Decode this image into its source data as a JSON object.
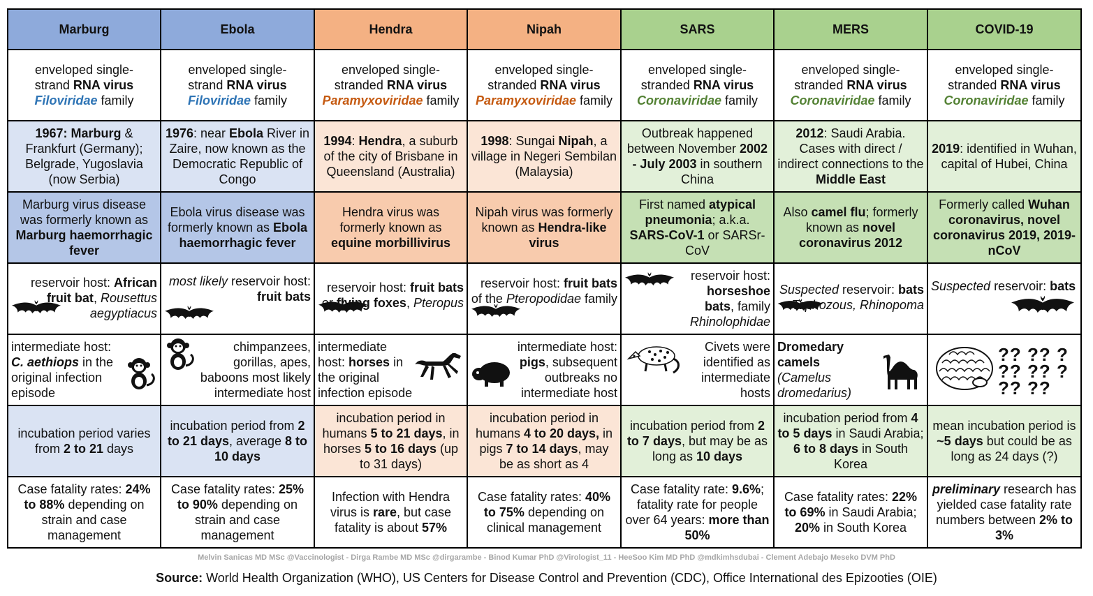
{
  "headers": [
    "Marburg",
    "Ebola",
    "Hendra",
    "Nipah",
    "SARS",
    "MERS",
    "COVID-19"
  ],
  "virus_type": {
    "marburg": {
      "l1": "enveloped single-",
      "l2a": "strand ",
      "l2b": "RNA virus",
      "fam": "Filoviridae",
      "fam_suffix": " family"
    },
    "ebola": {
      "l1": "enveloped single-",
      "l2a": "strand ",
      "l2b": "RNA virus",
      "fam": "Filoviridae",
      "fam_suffix": " family"
    },
    "hendra": {
      "l1": "enveloped single-",
      "l2a": "stranded ",
      "l2b": "RNA virus",
      "fam": "Paramyxoviridae",
      "fam_suffix": " family"
    },
    "nipah": {
      "l1": "enveloped single-",
      "l2a": "stranded ",
      "l2b": "RNA virus",
      "fam": "Paramyxoviridae",
      "fam_suffix": " family"
    },
    "sars": {
      "l1": "enveloped single-",
      "l2a": "stranded ",
      "l2b": "RNA virus",
      "fam": "Coronaviridae",
      "fam_suffix": " family"
    },
    "mers": {
      "l1": "enveloped single-",
      "l2a": "stranded ",
      "l2b": "RNA virus",
      "fam": "Coronaviridae",
      "fam_suffix": " family"
    },
    "covid": {
      "l1": "enveloped single-",
      "l2a": "stranded ",
      "l2b": "RNA virus",
      "fam": "Coronaviridae",
      "fam_suffix": " family"
    }
  },
  "origin": {
    "marburg": {
      "b1": "1967: Marburg",
      "t1": " & Frankfurt (Germany); Belgrade, Yugoslavia (now Serbia)"
    },
    "ebola": {
      "b1": "1976",
      "t1": ": near ",
      "b2": "Ebola",
      "t2": " River in Zaire, now known as the Democratic Republic of Congo"
    },
    "hendra": {
      "b1": "1994",
      "t1": ": ",
      "b2": "Hendra",
      "t2": ", a suburb of the city of Brisbane in Queensland (Australia)"
    },
    "nipah": {
      "b1": "1998",
      "t1": ": Sungai ",
      "b2": "Nipah",
      "t2": ", a village in Negeri Sembilan (Malaysia)"
    },
    "sars": {
      "t1": "Outbreak happened between November ",
      "b1": "2002 - July 2003",
      "t2": " in southern China"
    },
    "mers": {
      "b1": "2012",
      "t1": ": Saudi Arabia. Cases with direct / indirect connections to the ",
      "b2": "Middle East"
    },
    "covid": {
      "b1": "2019",
      "t1": ": identified in Wuhan, capital of Hubei, China"
    }
  },
  "former_names": {
    "marburg": {
      "t1": "Marburg virus disease was formerly known as ",
      "b1": "Marburg haemorrhagic fever"
    },
    "ebola": {
      "t1": "Ebola virus disease was formerly known as ",
      "b1": "Ebola haemorrhagic fever"
    },
    "hendra": {
      "t1": "Hendra virus was formerly known as ",
      "b1": "equine morbillivirus"
    },
    "nipah": {
      "t1": "Nipah virus was formerly known as ",
      "b1": "Hendra-like virus"
    },
    "sars": {
      "t1": "First named ",
      "b1": "atypical pneumonia",
      "t2": "; a.k.a. ",
      "b2": "SARS-CoV-1",
      "t3": " or SARSr-CoV"
    },
    "mers": {
      "t1": "Also ",
      "b1": "camel flu",
      "t2": "; formerly known as ",
      "b2": "novel coronavirus 2012"
    },
    "covid": {
      "t1": "Formerly called ",
      "b1": "Wuhan coronavirus, novel coronavirus 2019, 2019-nCoV"
    }
  },
  "reservoir": {
    "marburg": {
      "t1": "reservoir host: ",
      "b1": "African fruit bat",
      "t2": ", ",
      "i1": "Rousettus aegyptiacus"
    },
    "ebola": {
      "i1": "most likely",
      "t1": " reservoir host: ",
      "b1": "fruit bats"
    },
    "hendra": {
      "t1": "reservoir host: ",
      "b1": "fruit bats",
      "t2": " or ",
      "b2": "flying foxes",
      "t3": ", ",
      "i1": "Pteropus"
    },
    "nipah": {
      "t1": "reservoir host: ",
      "b1": "fruit bats",
      "t2": " of the ",
      "i1": "Pteropodidae",
      "t3": " family"
    },
    "sars": {
      "t1": "reservoir host: ",
      "b1": "horseshoe bats",
      "t2": ", family ",
      "i1": "Rhinolophidae"
    },
    "mers": {
      "i1": "Suspected",
      "t1": " reservoir: ",
      "b1": "bats",
      "i2": " Taphozous, Rhinopoma"
    },
    "covid": {
      "i1": "Suspected",
      "t1": " reservoir: ",
      "b1": "bats"
    }
  },
  "intermediate": {
    "marburg": {
      "t1": "intermediate host: ",
      "bi1": "C. aethiops",
      "t2": " in the original infection episode"
    },
    "ebola": {
      "t1": "chimpanzees, gorillas, apes, baboons most likely intermediate host"
    },
    "hendra": {
      "t1": "intermediate host: ",
      "b1": "horses",
      "t2": " in the original infection episode"
    },
    "nipah": {
      "t1": "intermediate host: ",
      "b1": "pigs",
      "t2": ", subsequent outbreaks no intermediate host"
    },
    "sars": {
      "t1": "Civets were identified as intermediate hosts"
    },
    "mers": {
      "b1": "Dromedary camels",
      "i1": "(Camelus dromedarius)"
    },
    "covid": {
      "qm": "?? ?? ?\n?? ?? ?\n?? ??"
    }
  },
  "incubation": {
    "marburg": {
      "t1": "incubation period varies from ",
      "b1": "2 to 21",
      "t2": " days"
    },
    "ebola": {
      "t1": "incubation period from ",
      "b1": "2 to 21 days",
      "t2": ", average ",
      "b2": "8 to 10 days"
    },
    "hendra": {
      "t1": "incubation period in humans ",
      "b1": "5 to 21 days",
      "t2": ", in horses ",
      "b2": "5 to 16 days",
      "t3": " (up to 31 days)"
    },
    "nipah": {
      "t1": "incubation period in humans ",
      "b1": "4 to 20 days,",
      "t2": " in pigs ",
      "b2": "7 to 14 days",
      "t3": ", may be as short as 4"
    },
    "sars": {
      "t1": "incubation period from ",
      "b1": "2 to 7 days",
      "t2": ", but may be as long as ",
      "b2": "10 days"
    },
    "mers": {
      "t1": "incubation period from ",
      "b1": "4 to 5 days",
      "t2": " in Saudi Arabia; ",
      "b2": "6 to 8 days",
      "t3": " in South Korea"
    },
    "covid": {
      "t1": "mean incubation period is ",
      "b1": "~5 days",
      "t2": " but could be as long as 24 days (?)"
    }
  },
  "fatality": {
    "marburg": {
      "t1": "Case fatality rates: ",
      "b1": "24% to 88%",
      "t2": " depending on strain and case management"
    },
    "ebola": {
      "t1": "Case fatality rates: ",
      "b1": "25% to 90%",
      "t2": " depending on strain and case management"
    },
    "hendra": {
      "t1": "Infection with Hendra virus is ",
      "b1": "rare",
      "t2": ", but case fatality is about ",
      "b2": "57%"
    },
    "nipah": {
      "t1": "Case fatality rates: ",
      "b1": "40% to 75%",
      "t2": " depending on clinical management"
    },
    "sars": {
      "t1": "Case fatality rate: ",
      "b1": "9.6%",
      "t2": "; fatality rate for people over 64 years: ",
      "b2": "more than 50%"
    },
    "mers": {
      "t1": "Case fatality rates: ",
      "b1": "22% to 69%",
      "t2": " in Saudi Arabia; ",
      "b2": "20%",
      "t3": " in South Korea"
    },
    "covid": {
      "bi1": "preliminary",
      "t1": " research has yielded case fatality rate numbers between ",
      "b1": "2% to 3%"
    }
  },
  "credits": "Melvin Sanicas MD MSc @Vaccinologist - Dirga Rambe MD MSc @dirgarambe - Binod Kumar PhD @Virologist_11 - HeeSoo Kim MD PhD @mdkimhsdubai - Clement Adebajo Meseko DVM PhD",
  "source": {
    "label": "Source:",
    "text": " World Health Organization (WHO), US Centers for Disease Control and Prevention (CDC), Office International des Epizooties (OIE)"
  },
  "icons": [
    "bat-icon",
    "monkey-icon",
    "horse-icon",
    "boar-icon",
    "civet-icon",
    "camel-icon",
    "pangolin-icon"
  ]
}
